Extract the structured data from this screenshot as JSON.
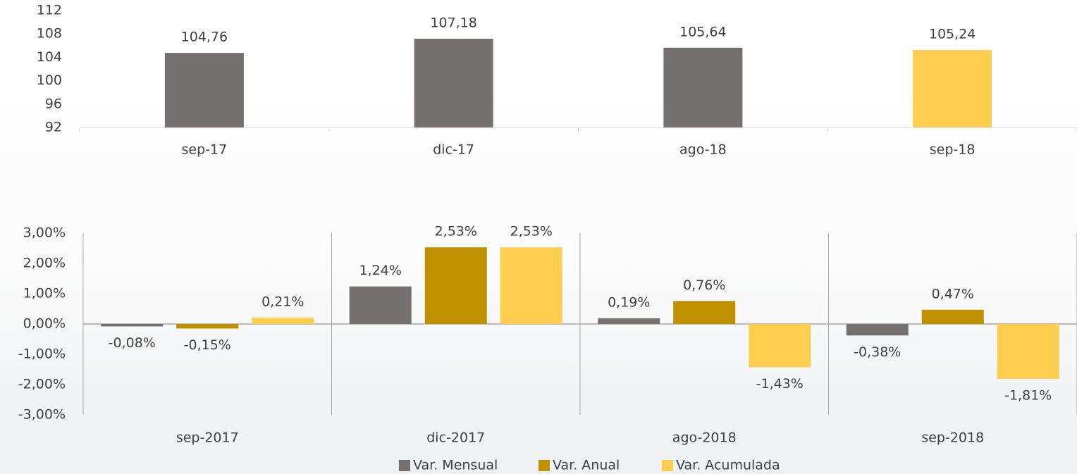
{
  "chart_data": [
    {
      "type": "bar",
      "categories": [
        "sep-17",
        "dic-17",
        "ago-18",
        "sep-18"
      ],
      "values": [
        104.76,
        107.18,
        105.64,
        105.24
      ],
      "value_labels": [
        "104,76",
        "107,18",
        "105,64",
        "105,24"
      ],
      "colors": [
        "#767171",
        "#767171",
        "#767171",
        "#FFCD4F"
      ],
      "ylim": [
        92,
        112
      ],
      "yticks": [
        92,
        96,
        100,
        104,
        108,
        112
      ],
      "grid": false
    },
    {
      "type": "bar",
      "categories": [
        "sep-2017",
        "dic-2017",
        "ago-2018",
        "sep-2018"
      ],
      "series": [
        {
          "name": "Var. Mensual",
          "color": "#767171",
          "values": [
            -0.08,
            1.24,
            0.19,
            -0.38
          ],
          "value_labels": [
            "-0,08%",
            "1,24%",
            "0,19%",
            "-0,38%"
          ]
        },
        {
          "name": "Var. Anual",
          "color": "#BF9000",
          "values": [
            -0.15,
            2.53,
            0.76,
            0.47
          ],
          "value_labels": [
            "-0,15%",
            "2,53%",
            "0,76%",
            "0,47%"
          ]
        },
        {
          "name": "Var. Acumulada",
          "color": "#FFCD4F",
          "values": [
            0.21,
            2.53,
            -1.43,
            -1.81
          ],
          "value_labels": [
            "0,21%",
            "2,53%",
            "-1,43%",
            "-1,81%"
          ]
        }
      ],
      "ylim": [
        -3,
        3
      ],
      "yticks": [
        {
          "value": -3,
          "label": "-3,00%"
        },
        {
          "value": -2,
          "label": "-2,00%"
        },
        {
          "value": -1,
          "label": "-1,00%"
        },
        {
          "value": 0,
          "label": "0,00%"
        },
        {
          "value": 1,
          "label": "1,00%"
        },
        {
          "value": 2,
          "label": "2,00%"
        },
        {
          "value": 3,
          "label": "3,00%"
        }
      ],
      "grid": false,
      "legend": "bottom"
    }
  ]
}
